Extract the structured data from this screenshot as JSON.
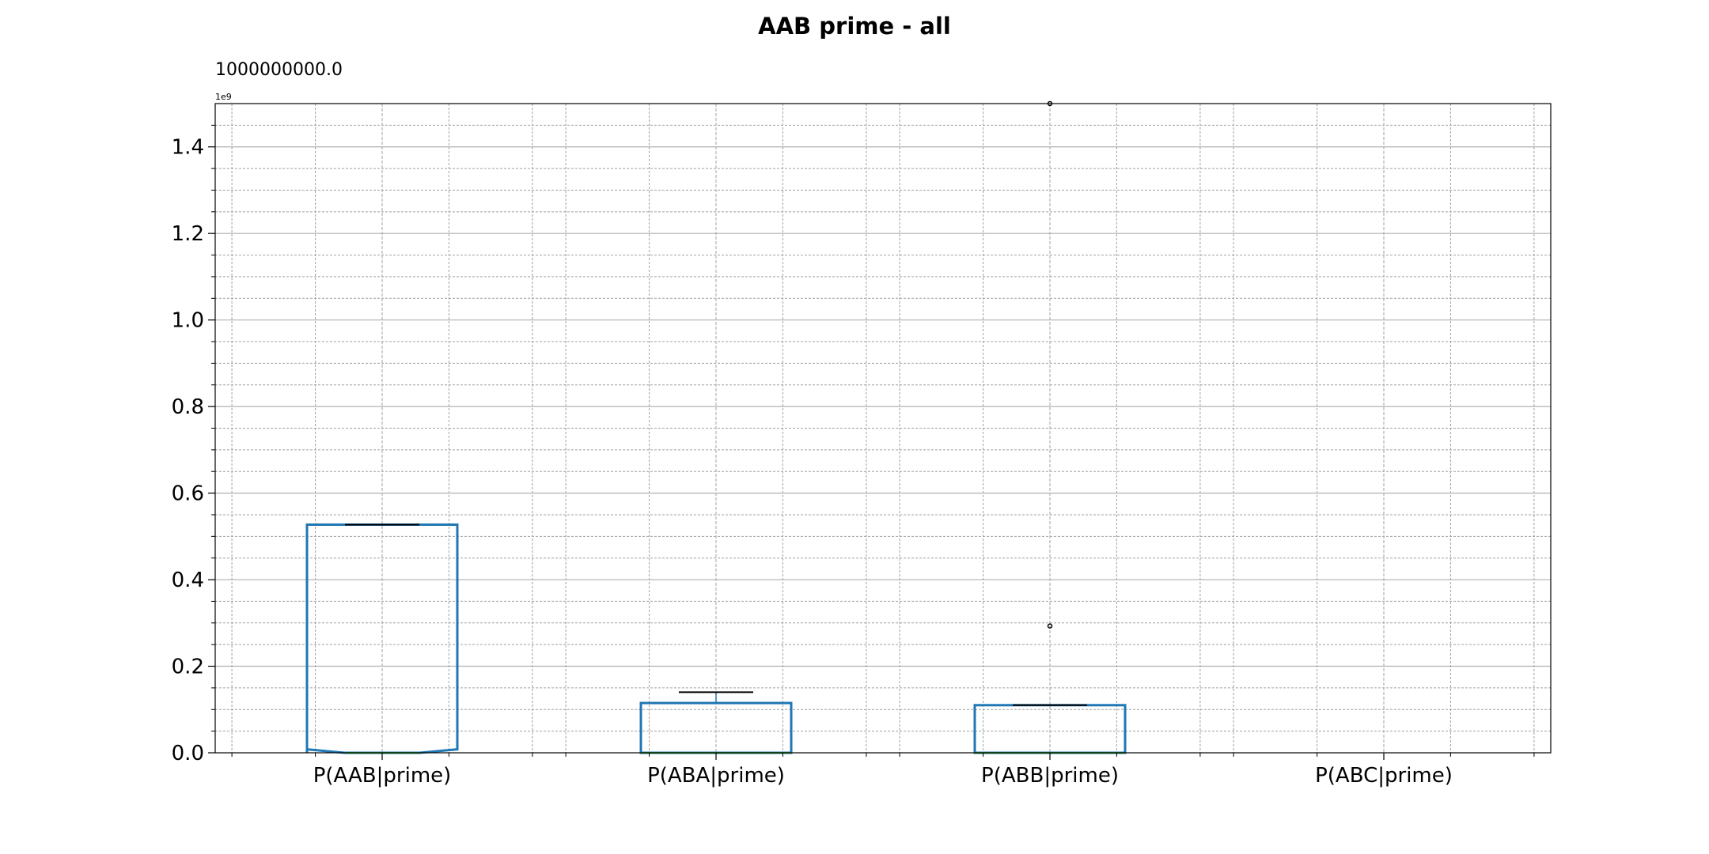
{
  "chart_data": {
    "type": "box",
    "title": "AAB prime - all",
    "top_annotation": "1000000000.0",
    "y_offset_label": "1e9",
    "ylim": [
      0,
      1.5
    ],
    "y_scale_factor": 1000000000,
    "y_major_ticks": [
      0.0,
      0.2,
      0.4,
      0.6,
      0.8,
      1.0,
      1.2,
      1.4
    ],
    "y_tick_labels": [
      "0.0",
      "0.2",
      "0.4",
      "0.6",
      "0.8",
      "1.0",
      "1.2",
      "1.4"
    ],
    "y_minor_step": 0.05,
    "grid": true,
    "categories": [
      "P(AAB|prime)",
      "P(ABA|prime)",
      "P(ABB|prime)",
      "P(ABC|prime)"
    ],
    "boxes": [
      {
        "name": "P(AAB|prime)",
        "q1": 0.0,
        "median": 0.0,
        "q3": 0.527,
        "whisker_low": 0.0,
        "whisker_high": 0.527,
        "notch_low": 0.0,
        "notch_high": 0.008,
        "outliers": []
      },
      {
        "name": "P(ABA|prime)",
        "q1": 0.0,
        "median": 0.0,
        "q3": 0.115,
        "whisker_low": 0.0,
        "whisker_high": 0.14,
        "outliers": []
      },
      {
        "name": "P(ABB|prime)",
        "q1": 0.0,
        "median": 0.0,
        "q3": 0.11,
        "whisker_low": 0.0,
        "whisker_high": 0.11,
        "outliers": [
          0.293,
          1.5
        ]
      },
      {
        "name": "P(ABC|prime)",
        "q1": null,
        "median": null,
        "q3": null,
        "whisker_low": null,
        "whisker_high": null,
        "outliers": []
      }
    ],
    "colors": {
      "box": "#1f77b4",
      "median": "#2ca02c",
      "whisker_cap": "#000000",
      "grid_major": "#b0b0b0",
      "grid_minor": "#a0a0a0"
    }
  }
}
